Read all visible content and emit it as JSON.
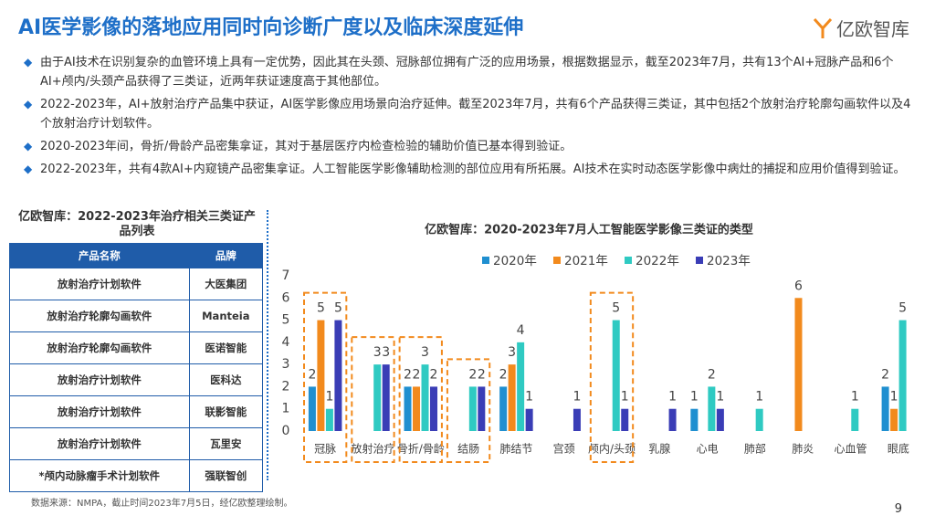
{
  "header": {
    "title": "AI医学影像的落地应用同时向诊断广度以及临床深度延伸",
    "logo": "亿欧智库"
  },
  "bullets": [
    "由于AI技术在识别复杂的血管环境上具有一定优势，因此其在头颈、冠脉部位拥有广泛的应用场景，根据数据显示，截至2023年7月，共有13个AI+冠脉产品和6个AI+颅内/头颈产品获得了三类证，近两年获证速度高于其他部位。",
    "2022-2023年，AI+放射治疗产品集中获证，AI医学影像应用场景向治疗延伸。截至2023年7月，共有6个产品获得三类证，其中包括2个放射治疗轮廓勾画软件以及4个放射治疗计划软件。",
    "2020-2023年间，骨折/骨龄产品密集拿证，其对于基层医疗内检查检验的辅助价值已基本得到验证。",
    "2022-2023年，共有4款AI+内窥镜产品密集拿证。人工智能医学影像辅助检测的部位应用有所拓展。AI技术在实时动态医学影像中病灶的捕捉和应用价值得到验证。"
  ],
  "table": {
    "title": "亿欧智库：2022-2023年治疗相关三类证产品列表",
    "columns": [
      "产品名称",
      "品牌"
    ],
    "rows": [
      [
        "放射治疗计划软件",
        "大医集团"
      ],
      [
        "放射治疗轮廓勾画软件",
        "Manteia"
      ],
      [
        "放射治疗轮廓勾画软件",
        "医诺智能"
      ],
      [
        "放射治疗计划软件",
        "医科达"
      ],
      [
        "放射治疗计划软件",
        "联影智能"
      ],
      [
        "放射治疗计划软件",
        "瓦里安"
      ],
      [
        "*颅内动脉瘤手术计划软件",
        "强联智创"
      ]
    ]
  },
  "chart_data": {
    "type": "bar",
    "title": "亿欧智库：2020-2023年7月人工智能医学影像三类证的类型",
    "categories": [
      "冠脉",
      "放射治疗",
      "骨折/骨龄",
      "结肠",
      "肺结节",
      "宫颈",
      "颅内/头颈",
      "乳腺",
      "心电",
      "肺部",
      "肺炎",
      "心血管",
      "眼底"
    ],
    "series": [
      {
        "name": "2020年",
        "color": "#1f8fd0",
        "values": [
          2,
          null,
          2,
          null,
          2,
          null,
          null,
          null,
          1,
          null,
          null,
          null,
          2
        ]
      },
      {
        "name": "2021年",
        "color": "#f28a1d",
        "values": [
          5,
          null,
          2,
          null,
          3,
          null,
          null,
          null,
          null,
          null,
          6,
          null,
          1
        ]
      },
      {
        "name": "2022年",
        "color": "#2fcac2",
        "values": [
          1,
          3,
          3,
          2,
          4,
          null,
          5,
          null,
          2,
          1,
          null,
          1,
          5
        ]
      },
      {
        "name": "2023年",
        "color": "#3a3db6",
        "values": [
          5,
          3,
          2,
          2,
          1,
          1,
          1,
          1,
          1,
          null,
          null,
          null,
          null
        ]
      }
    ],
    "ylim": [
      0,
      7
    ],
    "yticks": [
      0,
      1,
      2,
      3,
      4,
      5,
      6,
      7
    ],
    "highlighted_categories": [
      0,
      1,
      2,
      3,
      6
    ],
    "highlight_color": "#f28a1d"
  },
  "footer": {
    "source": "数据来源：NMPA，截止时间2023年7月5日，经亿欧整理绘制。",
    "page": "9"
  }
}
